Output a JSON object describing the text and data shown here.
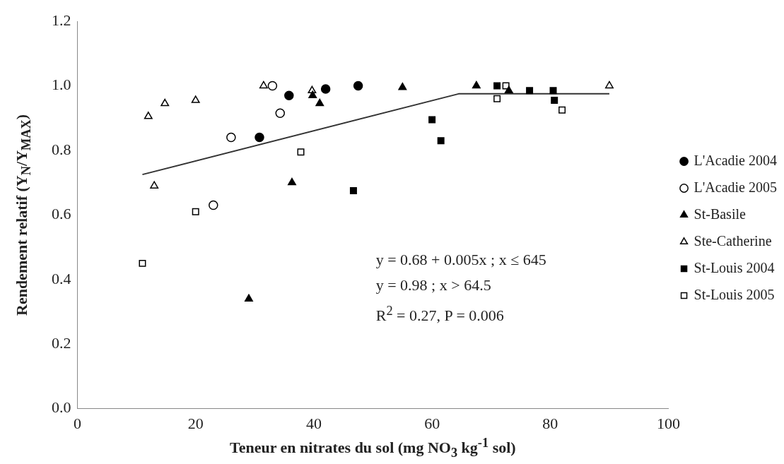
{
  "chart_data": {
    "type": "scatter",
    "xlabel": "Teneur en nitrates du sol (mg NO$_{3}$ kg$^{-1}$ sol)",
    "ylabel": "Rendement relatif (Y$_{N}$/Y$_{MAX}$)",
    "xlim": [
      0,
      100
    ],
    "xticks": [
      0,
      20,
      40,
      60,
      80,
      100
    ],
    "ylim": [
      0,
      1.2
    ],
    "yticks": [
      {
        "value": 0,
        "label": "0.0"
      },
      {
        "value": 0.2,
        "label": "0.2"
      },
      {
        "value": 0.4,
        "label": "0.4"
      },
      {
        "value": 0.6,
        "label": "0.6"
      },
      {
        "value": 0.8,
        "label": "0.8"
      },
      {
        "value": 1,
        "label": "1.0"
      },
      {
        "value": 1.2,
        "label": "1.2"
      }
    ],
    "grid": false,
    "legend": "right",
    "annotations": [
      "y = 0.68 + 0.005x ; x ≤ 645",
      "y = 0.98 ; x > 64.5",
      "R$^{2}$ = 0.27, P = 0.006"
    ],
    "series": [
      {
        "name": "L'Acadie 2004",
        "color": "#000000",
        "marker": "circle",
        "x": [
          30.8,
          35.8,
          42,
          47.5
        ],
        "values": [
          0.84,
          0.97,
          0.99,
          1.0
        ]
      },
      {
        "name": "L'Acadie 2005",
        "color": "#ffffff",
        "marker": "circle",
        "x": [
          23,
          26,
          33,
          34.3
        ],
        "values": [
          0.63,
          0.84,
          1.0,
          0.915
        ]
      },
      {
        "name": "St-Basile",
        "color": "#000000",
        "marker": "triangle",
        "x": [
          29,
          36.3,
          39.8,
          41,
          55,
          67.5,
          73
        ],
        "values": [
          0.34,
          0.7,
          0.97,
          0.945,
          0.995,
          1.0,
          0.985
        ]
      },
      {
        "name": "Ste-Catherine",
        "color": "#ffffff",
        "marker": "triangle",
        "x": [
          12,
          13,
          14.8,
          20,
          31.5,
          39.7,
          90
        ],
        "values": [
          0.905,
          0.69,
          0.945,
          0.955,
          1.0,
          0.985,
          1.0
        ]
      },
      {
        "name": "St-Louis 2004",
        "color": "#000000",
        "marker": "square",
        "x": [
          46.7,
          60,
          61.5,
          71,
          76.5,
          80.5,
          80.7
        ],
        "values": [
          0.675,
          0.895,
          0.83,
          1.0,
          0.985,
          0.985,
          0.955
        ]
      },
      {
        "name": "St-Louis 2005",
        "color": "#ffffff",
        "marker": "square",
        "x": [
          11,
          20,
          37.8,
          71,
          72.5,
          82
        ],
        "values": [
          0.45,
          0.61,
          0.795,
          0.96,
          1.0,
          0.925
        ]
      },
      {
        "type": "line",
        "color": "#333333",
        "marker": "none",
        "line_style": "solid",
        "x": [
          11,
          64.5,
          90
        ],
        "values": [
          0.725,
          0.975,
          0.975
        ]
      }
    ]
  }
}
